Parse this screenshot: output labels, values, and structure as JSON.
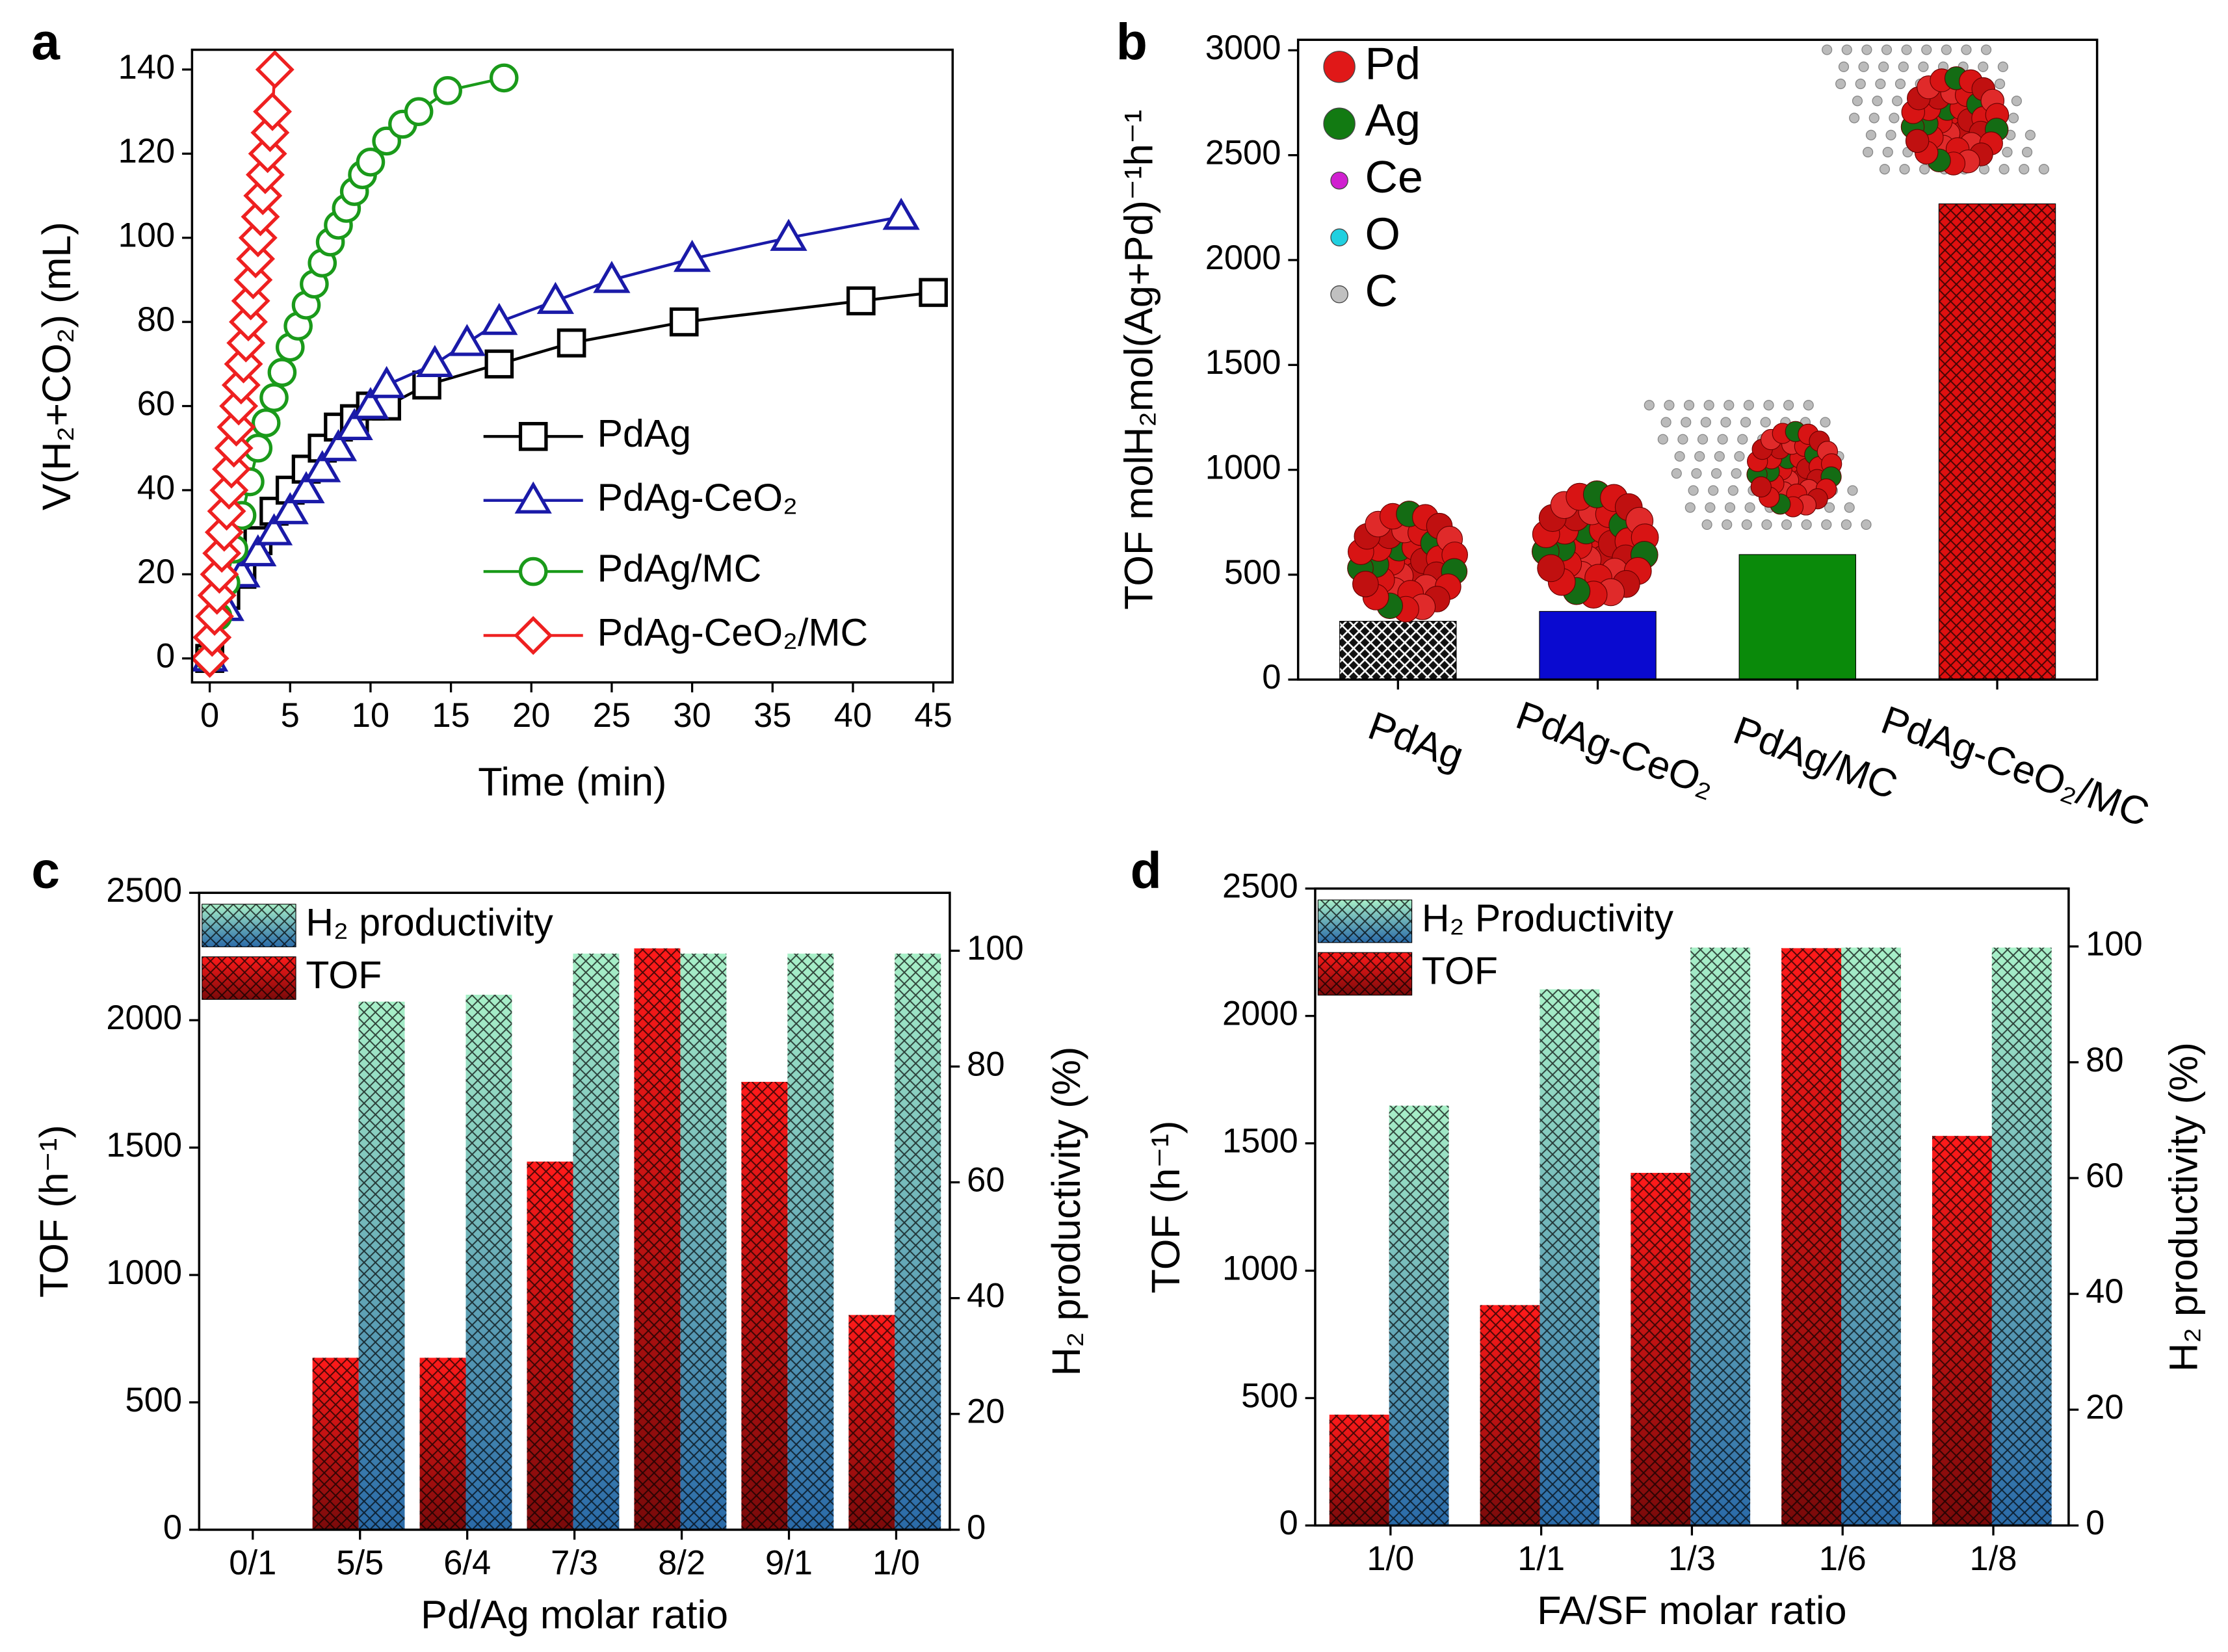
{
  "chart_data": [
    {
      "panel": "a",
      "type": "line",
      "xlabel": "Time (min)",
      "ylabel": "V(H₂+CO₂) (mL)",
      "xlim": [
        -1.1,
        46.2
      ],
      "ylim": [
        -5.7,
        144.7
      ],
      "xticks": [
        0,
        5,
        10,
        15,
        20,
        25,
        30,
        35,
        40,
        45
      ],
      "yticks": [
        0,
        20,
        40,
        60,
        80,
        100,
        120,
        140
      ],
      "legend": "lower right",
      "series": [
        {
          "name": "PdAg",
          "color": "#000000",
          "marker": "square",
          "x": [
            0,
            1,
            2,
            3,
            4,
            5,
            6,
            7,
            8,
            9,
            10,
            11,
            13.5,
            18,
            22.5,
            29.5,
            40.5,
            45
          ],
          "values": [
            0,
            15,
            20,
            28,
            35,
            40,
            45,
            50,
            55,
            57,
            60,
            60,
            65,
            70,
            75,
            80,
            85,
            87
          ]
        },
        {
          "name": "PdAg-CeO₂",
          "color": "#1a1aa8",
          "marker": "triangle",
          "x": [
            0,
            1,
            2,
            3,
            4,
            5,
            6,
            7,
            8,
            9,
            10,
            11,
            14,
            16,
            18,
            21.5,
            25,
            30,
            36,
            43
          ],
          "values": [
            0,
            12,
            20,
            25,
            30,
            35,
            40,
            45,
            50,
            55,
            60,
            65,
            70,
            75,
            80,
            85,
            90,
            95,
            100,
            105
          ]
        },
        {
          "name": "PdAg/MC",
          "color": "#1a9a1a",
          "marker": "circle",
          "x": [
            0,
            0.5,
            1,
            1.5,
            2,
            2.5,
            3,
            3.5,
            4,
            4.5,
            5,
            5.5,
            6,
            6.5,
            7,
            7.5,
            8,
            8.5,
            9,
            9.5,
            10,
            11,
            12,
            13,
            14.8,
            18.3
          ],
          "values": [
            0,
            10,
            18,
            26,
            34,
            42,
            50,
            56,
            62,
            68,
            74,
            79,
            84,
            89,
            94,
            99,
            103,
            107,
            111,
            115,
            118,
            123,
            127,
            130,
            135,
            138
          ]
        },
        {
          "name": "PdAg-CeO₂/MC",
          "color": "#ee2020",
          "marker": "diamond",
          "x": [
            0,
            0.15,
            0.3,
            0.45,
            0.6,
            0.75,
            0.9,
            1.05,
            1.2,
            1.35,
            1.5,
            1.65,
            1.8,
            1.95,
            2.1,
            2.25,
            2.4,
            2.55,
            2.7,
            2.85,
            3.0,
            3.15,
            3.3,
            3.45,
            3.6,
            3.75,
            3.9,
            4.05
          ],
          "values": [
            0,
            5,
            10,
            15,
            20,
            25,
            30,
            35,
            40,
            45,
            50,
            55,
            60,
            65,
            70,
            75,
            80,
            85,
            90,
            95,
            100,
            105,
            110,
            115,
            120,
            125,
            130,
            140
          ]
        }
      ]
    },
    {
      "panel": "b",
      "type": "bar",
      "ylabel": "TOF molH₂mol(Ag+Pd)⁻¹h⁻¹",
      "categories": [
        "PdAg",
        "PdAg-CeO₂",
        "PdAg/MC",
        "PdAg-CeO₂/MC"
      ],
      "values": [
        278,
        325,
        596,
        2268
      ],
      "colors": [
        "#111111",
        "#0a0ad0",
        "#0a8a0a",
        "#e01010"
      ],
      "ylim": [
        0,
        3050
      ],
      "yticks": [
        0,
        500,
        1000,
        1500,
        2000,
        2500,
        3000
      ],
      "atom_legend": [
        {
          "name": "Pd",
          "color": "#e01818"
        },
        {
          "name": "Ag",
          "color": "#127a12"
        },
        {
          "name": "Ce",
          "color": "#d020d0"
        },
        {
          "name": "O",
          "color": "#20d0e0"
        },
        {
          "name": "C",
          "color": "#c0c0c0"
        }
      ]
    },
    {
      "panel": "c",
      "type": "grouped_bar",
      "xlabel": "Pd/Ag molar ratio",
      "ylabel": "TOF (h⁻¹)",
      "y2label": "H₂ productivity (%)",
      "categories": [
        "0/1",
        "5/5",
        "6/4",
        "7/3",
        "8/2",
        "9/1",
        "1/0"
      ],
      "ylim": [
        0,
        2500
      ],
      "yticks": [
        0,
        500,
        1000,
        1500,
        2000,
        2500
      ],
      "y2lim": [
        0,
        110
      ],
      "y2ticks": [
        0,
        20,
        40,
        60,
        80,
        100
      ],
      "legend": "upper left",
      "series": [
        {
          "name": "H₂ productivity",
          "color": "#a8f0c8",
          "axis": "y2",
          "values": [
            0,
            91.2,
            92.4,
            99.5,
            99.5,
            99.5,
            99.5
          ]
        },
        {
          "name": "TOF",
          "color": "#ff1a1a",
          "values": [
            0,
            675,
            675,
            1445,
            2282,
            1758,
            843
          ]
        }
      ]
    },
    {
      "panel": "d",
      "type": "grouped_bar",
      "xlabel": "FA/SF molar ratio",
      "ylabel": "TOF (h⁻¹)",
      "y2label": "H₂ productivity (%)",
      "categories": [
        "1/0",
        "1/1",
        "1/3",
        "1/6",
        "1/8"
      ],
      "ylim": [
        0,
        2500
      ],
      "yticks": [
        0,
        500,
        1000,
        1500,
        2000,
        2500
      ],
      "y2lim": [
        0,
        110
      ],
      "y2ticks": [
        0,
        20,
        40,
        60,
        80,
        100
      ],
      "legend": "upper left",
      "series": [
        {
          "name": "H₂ Productivity",
          "color": "#a8f0c8",
          "axis": "y2",
          "values": [
            72.5,
            92.6,
            99.8,
            99.8,
            99.8
          ]
        },
        {
          "name": "TOF",
          "color": "#ff1a1a",
          "values": [
            435,
            865,
            1384,
            2266,
            1529
          ]
        }
      ]
    }
  ]
}
